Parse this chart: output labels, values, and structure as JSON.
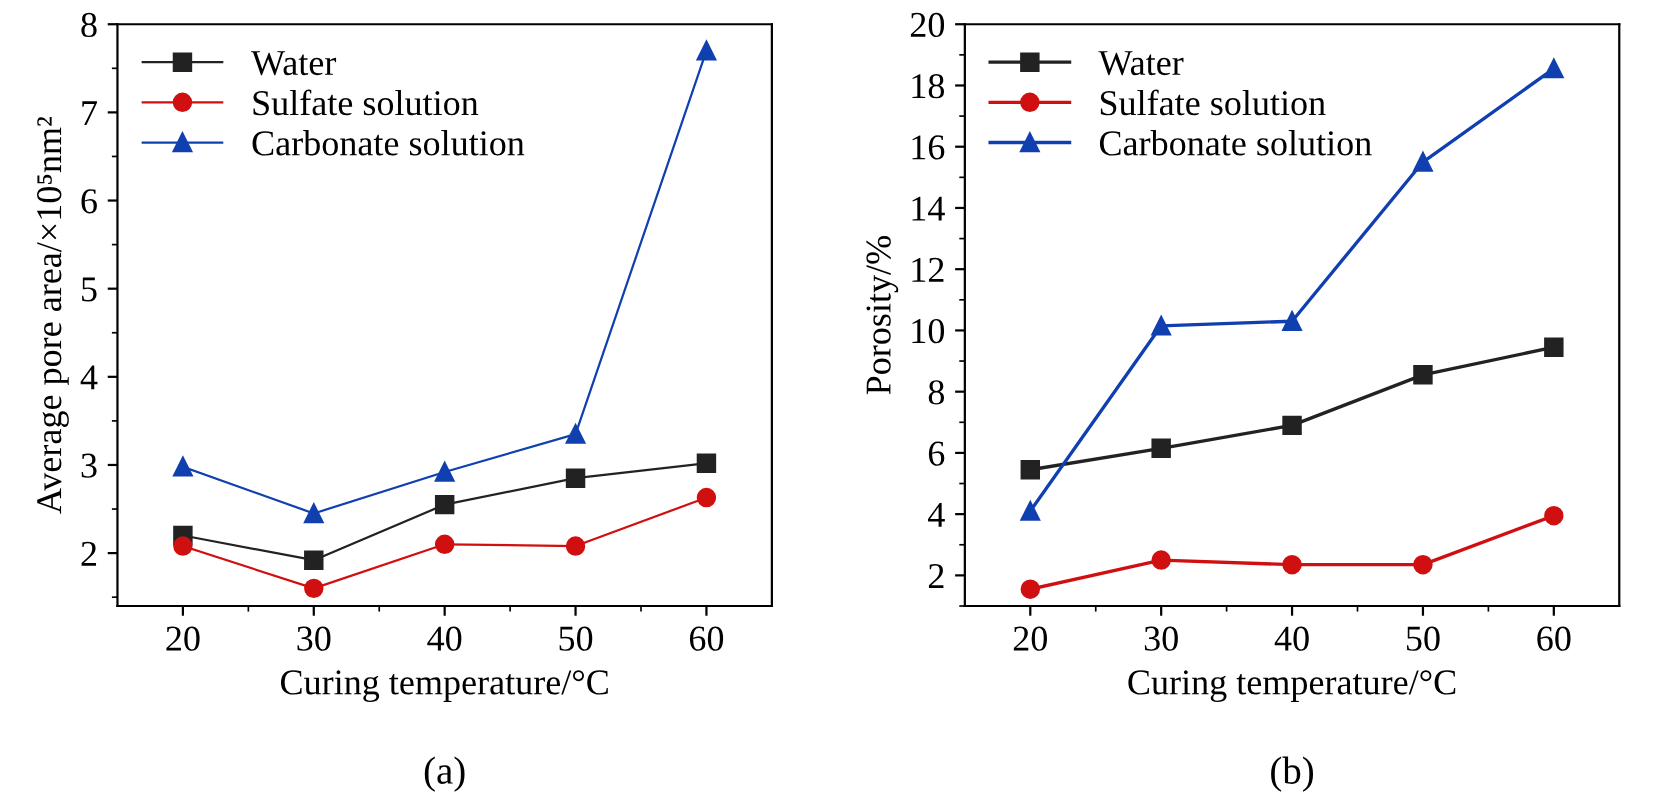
{
  "chart_data": [
    {
      "type": "line",
      "xlabel": "Curing temperature/°C",
      "ylabel": "Average pore area/×10⁵nm²",
      "x": [
        20,
        30,
        40,
        50,
        60
      ],
      "xlim": [
        15,
        65
      ],
      "ylim": [
        1.4,
        8
      ],
      "xticks": [
        20,
        30,
        40,
        50,
        60
      ],
      "yticks": [
        2,
        3,
        4,
        5,
        6,
        7,
        8
      ],
      "legend": "top left",
      "annotations": [
        "(a)"
      ],
      "series": [
        {
          "name": "Water",
          "color": "#222222",
          "marker": "square",
          "values": [
            2.2,
            1.92,
            2.55,
            2.85,
            3.02
          ]
        },
        {
          "name": "Sulfate solution",
          "color": "#d01010",
          "marker": "circle",
          "values": [
            2.08,
            1.6,
            2.1,
            2.08,
            2.63
          ]
        },
        {
          "name": "Carbonate solution",
          "color": "#1040b0",
          "marker": "triangle",
          "values": [
            2.98,
            2.45,
            2.92,
            3.35,
            7.7
          ]
        }
      ]
    },
    {
      "type": "line",
      "xlabel": "Curing temperature/°C",
      "ylabel": "Porosity/%",
      "x": [
        20,
        30,
        40,
        50,
        60
      ],
      "xlim": [
        15,
        65
      ],
      "ylim": [
        1,
        20
      ],
      "xticks": [
        20,
        30,
        40,
        50,
        60
      ],
      "yticks": [
        2,
        4,
        6,
        8,
        10,
        12,
        14,
        16,
        18,
        20
      ],
      "legend": "top left",
      "annotations": [
        "(b)"
      ],
      "series": [
        {
          "name": "Water",
          "color": "#222222",
          "marker": "square",
          "values": [
            5.45,
            6.15,
            6.9,
            8.55,
            9.45
          ]
        },
        {
          "name": "Sulfate solution",
          "color": "#d01010",
          "marker": "circle",
          "values": [
            1.55,
            2.5,
            2.35,
            2.35,
            3.95
          ]
        },
        {
          "name": "Carbonate solution",
          "color": "#1040b0",
          "marker": "triangle",
          "values": [
            4.1,
            10.15,
            10.3,
            15.5,
            18.55
          ]
        }
      ]
    }
  ]
}
